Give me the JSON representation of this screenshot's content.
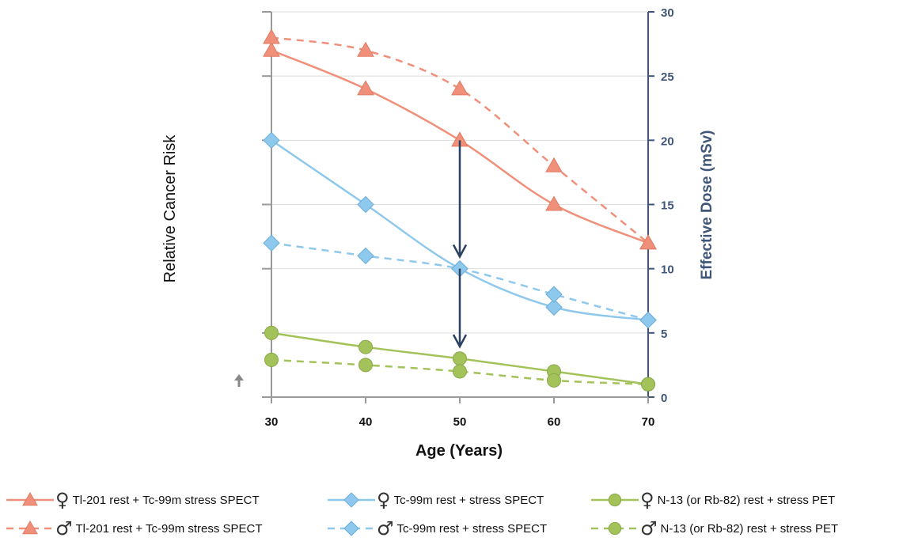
{
  "chart_data": {
    "type": "line",
    "x": [
      30,
      40,
      50,
      60,
      70
    ],
    "xlabel": "Age (Years)",
    "ylabel_left": "Relative Cancer Risk",
    "ylabel_right": "Effective Dose (mSv)",
    "ylim": [
      0,
      30
    ],
    "x_ticks": [
      "30",
      "40",
      "50",
      "60",
      "70"
    ],
    "y_ticks": [
      "0",
      "5",
      "10",
      "15",
      "20",
      "25",
      "30"
    ],
    "grid": true,
    "legend_position": "bottom",
    "series": [
      {
        "name": "Tl-201 rest + Tc-99m stress SPECT",
        "sex": "female",
        "marker": "triangle",
        "dashed": false,
        "color": "#f0907a",
        "values": [
          27,
          24,
          20,
          15,
          12
        ]
      },
      {
        "name": "Tl-201 rest + Tc-99m stress SPECT",
        "sex": "male",
        "marker": "triangle",
        "dashed": true,
        "color": "#f0907a",
        "values": [
          28,
          27,
          24,
          18,
          12
        ]
      },
      {
        "name": "Tc-99m rest + stress SPECT",
        "sex": "female",
        "marker": "diamond",
        "dashed": false,
        "color": "#8ec8ec",
        "values": [
          20,
          15,
          10,
          7,
          6
        ]
      },
      {
        "name": "Tc-99m rest + stress SPECT",
        "sex": "male",
        "marker": "diamond",
        "dashed": true,
        "color": "#8ec8ec",
        "values": [
          12,
          11,
          10,
          8,
          6
        ]
      },
      {
        "name": "N-13 (or Rb-82) rest + stress PET",
        "sex": "female",
        "marker": "circle",
        "dashed": false,
        "color": "#a3c25a",
        "values": [
          5,
          3.9,
          3,
          2,
          1
        ]
      },
      {
        "name": "N-13 (or Rb-82) rest + stress PET",
        "sex": "male",
        "marker": "circle",
        "dashed": true,
        "color": "#a3c25a",
        "values": [
          2.9,
          2.5,
          2,
          1.3,
          1
        ]
      }
    ],
    "annotations": [
      {
        "type": "arrow",
        "x": 50,
        "from": 20,
        "to": 11
      },
      {
        "type": "arrow",
        "x": 50,
        "from": 10,
        "to": 4
      }
    ]
  },
  "legend": {
    "female_symbol": "♀",
    "male_symbol": "♂",
    "items": [
      {
        "label": "Tl-201 rest + Tc-99m stress SPECT",
        "symbol": "♀",
        "marker": "triangle",
        "dashed": false,
        "color": "#f0907a"
      },
      {
        "label": "Tc-99m rest + stress SPECT",
        "symbol": "♀",
        "marker": "diamond",
        "dashed": false,
        "color": "#8ec8ec"
      },
      {
        "label": "N-13 (or Rb-82) rest + stress PET",
        "symbol": "♀",
        "marker": "circle",
        "dashed": false,
        "color": "#a3c25a"
      },
      {
        "label": "Tl-201 rest + Tc-99m stress SPECT",
        "symbol": "♂",
        "marker": "triangle",
        "dashed": true,
        "color": "#f0907a"
      },
      {
        "label": "Tc-99m rest + stress SPECT",
        "symbol": "♂",
        "marker": "diamond",
        "dashed": true,
        "color": "#8ec8ec"
      },
      {
        "label": "N-13 (or Rb-82) rest + stress PET",
        "symbol": "♂",
        "marker": "circle",
        "dashed": true,
        "color": "#a3c25a"
      }
    ]
  },
  "colors": {
    "axis_right": "#3f5679",
    "grid": "#dddddd",
    "arrow": "#2a4060",
    "small_arrow": "#888888"
  }
}
